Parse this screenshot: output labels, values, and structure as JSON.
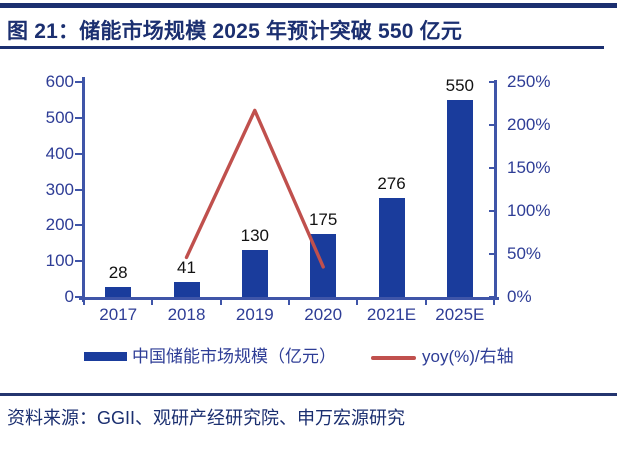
{
  "header": {
    "title": "图 21：储能市场规模 2025 年预计突破 550 亿元"
  },
  "chart_data": {
    "type": "bar",
    "subtype": "combo-bar-line-dual-axis",
    "categories": [
      "2017",
      "2018",
      "2019",
      "2020",
      "2021E",
      "2025E"
    ],
    "series": [
      {
        "name": "中国储能市场规模（亿元）",
        "type": "bar",
        "axis": "left",
        "values": [
          28,
          41,
          130,
          175,
          276,
          550
        ],
        "color": "#1a3c9c"
      },
      {
        "name": "yoy(%)/右轴",
        "type": "line",
        "axis": "right",
        "values": [
          null,
          46,
          217,
          35,
          null,
          null
        ],
        "color": "#c0504d"
      }
    ],
    "bar_labels": [
      "28",
      "41",
      "130",
      "175",
      "276",
      "550"
    ],
    "left_axis": {
      "min": 0,
      "max": 600,
      "ticks": [
        "600",
        "500",
        "400",
        "300",
        "200",
        "100",
        "0"
      ]
    },
    "right_axis": {
      "min": 0,
      "max": 250,
      "ticks": [
        "250%",
        "200%",
        "150%",
        "100%",
        "50%",
        "0%"
      ]
    },
    "grid": false,
    "legend_position": "bottom",
    "title": "图 21：储能市场规模 2025 年预计突破 550 亿元"
  },
  "legend": {
    "bar_label": "中国储能市场规模（亿元）",
    "line_label": "yoy(%)/右轴"
  },
  "footer": {
    "source": "资料来源：GGII、观研产经研究院、申万宏源研究"
  },
  "colors": {
    "accent_navy": "#1b2f70",
    "axis_blue": "#3f55a8",
    "axis_label_blue": "#2e3d96",
    "bar_blue": "#1a3c9c",
    "line_red": "#c0504d",
    "data_label": "#121212"
  }
}
